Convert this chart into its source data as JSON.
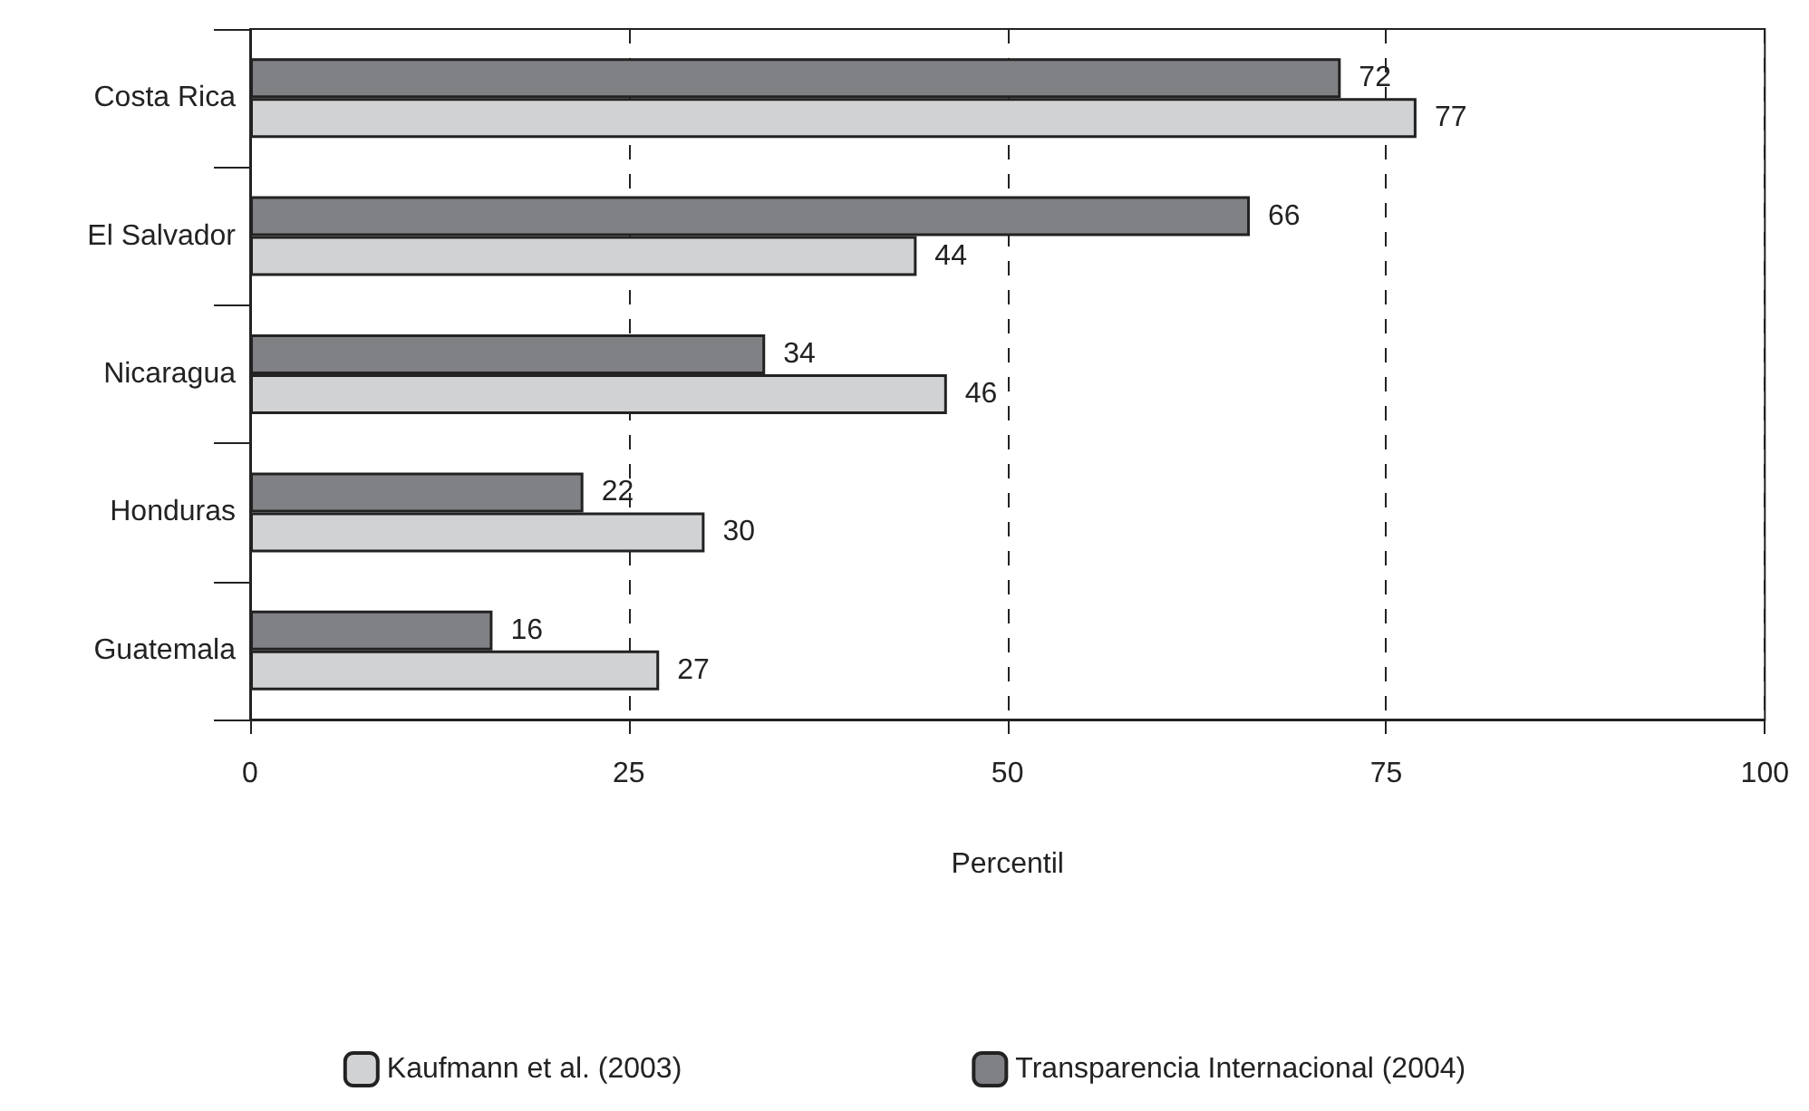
{
  "chart_data": {
    "type": "bar",
    "orientation": "horizontal",
    "xlabel": "Percentil",
    "categories": [
      "Costa Rica",
      "El Salvador",
      "Nicaragua",
      "Honduras",
      "Guatemala"
    ],
    "series": [
      {
        "name": "Transparencia Internacional (2004)",
        "color": "#808184",
        "values": [
          72,
          66,
          34,
          22,
          16
        ]
      },
      {
        "name": "Kaufmann et al. (2003)",
        "color": "#d1d2d4",
        "values": [
          77,
          44,
          46,
          30,
          27
        ]
      }
    ],
    "xlim": [
      0,
      100
    ],
    "xticks": [
      0,
      25,
      50,
      75,
      100
    ],
    "grid": "x",
    "legend": "bottom",
    "data_labels": true
  }
}
